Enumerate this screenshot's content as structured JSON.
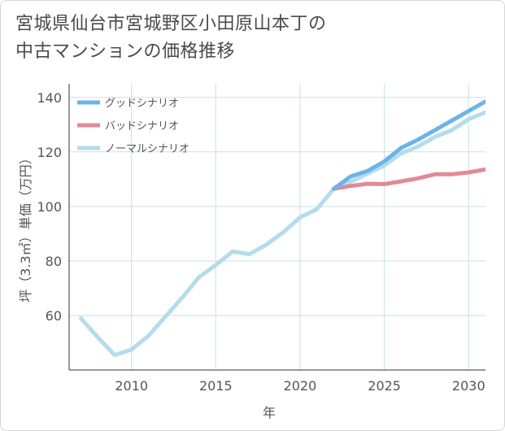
{
  "title": {
    "line1": "宮城県仙台市宮城野区小田原山本丁の",
    "line2": "中古マンションの価格推移"
  },
  "chart_data": {
    "type": "line",
    "xlabel": "年",
    "ylabel": "坪（3.3㎡）単価（万円）",
    "xlim": [
      2006.3,
      2031
    ],
    "ylim": [
      40,
      145
    ],
    "x_ticks": [
      2010,
      2015,
      2020,
      2025,
      2030
    ],
    "y_ticks": [
      60,
      80,
      100,
      120,
      140
    ],
    "grid": true,
    "legend_position": "top-left",
    "series": [
      {
        "name": "グッドシナリオ",
        "color": "#6cb4e8",
        "points": [
          [
            2022,
            106.5
          ],
          [
            2023,
            111
          ],
          [
            2024,
            113
          ],
          [
            2025,
            116.5
          ],
          [
            2026,
            121.5
          ],
          [
            2027,
            124.5
          ],
          [
            2028,
            128
          ],
          [
            2029,
            131.5
          ],
          [
            2030,
            135
          ],
          [
            2031,
            138.5
          ]
        ]
      },
      {
        "name": "バッドシナリオ",
        "color": "#e08a96",
        "points": [
          [
            2022,
            106.5
          ],
          [
            2023,
            107.5
          ],
          [
            2024,
            108.3
          ],
          [
            2025,
            108.2
          ],
          [
            2026,
            109.2
          ],
          [
            2027,
            110.3
          ],
          [
            2028,
            111.8
          ],
          [
            2029,
            111.8
          ],
          [
            2030,
            112.5
          ],
          [
            2031,
            113.6
          ]
        ]
      },
      {
        "name": "ノーマルシナリオ",
        "color": "#b5dcec",
        "points": [
          [
            2007,
            59
          ],
          [
            2008,
            52
          ],
          [
            2009,
            45.5
          ],
          [
            2010,
            47.5
          ],
          [
            2011,
            52.5
          ],
          [
            2012,
            59.5
          ],
          [
            2013,
            66.5
          ],
          [
            2014,
            74
          ],
          [
            2015,
            78.5
          ],
          [
            2016,
            83.5
          ],
          [
            2017,
            82.5
          ],
          [
            2018,
            86
          ],
          [
            2019,
            90.5
          ],
          [
            2020,
            96
          ],
          [
            2021,
            99
          ],
          [
            2022,
            106.5
          ],
          [
            2023,
            109
          ],
          [
            2024,
            112
          ],
          [
            2025,
            115
          ],
          [
            2026,
            119.5
          ],
          [
            2027,
            122
          ],
          [
            2028,
            125.5
          ],
          [
            2029,
            128
          ],
          [
            2030,
            132
          ],
          [
            2031,
            134.5
          ]
        ]
      }
    ]
  }
}
